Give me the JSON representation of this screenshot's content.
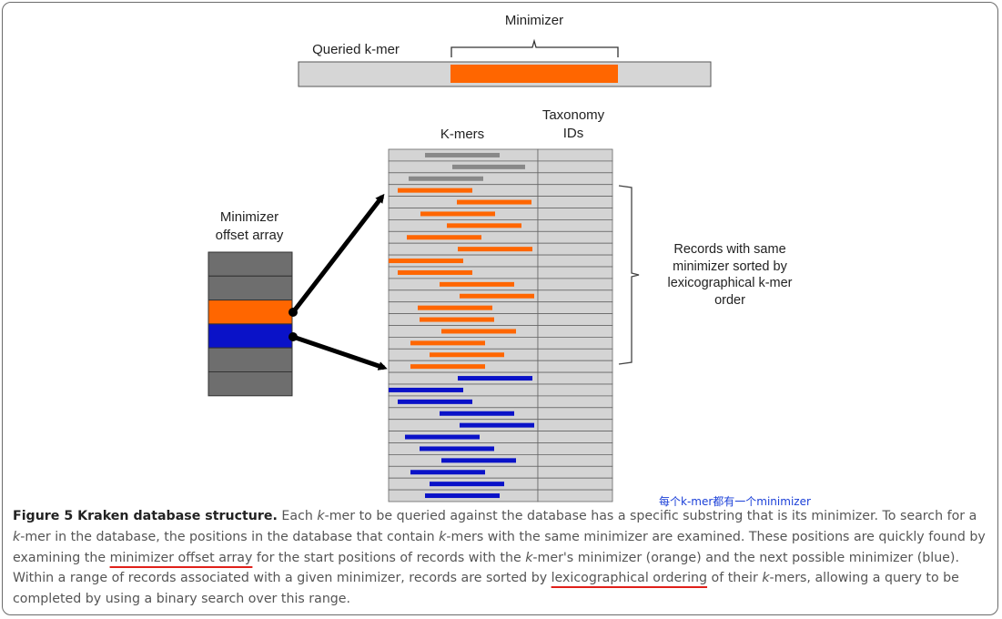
{
  "labels": {
    "minimizer": "Minimizer",
    "queried_kmer": "Queried k-mer",
    "kmers": "K-mers",
    "taxonomy_ids": [
      "Taxonomy",
      "IDs"
    ],
    "offset_array": [
      "Minimizer",
      "offset array"
    ],
    "records_note": [
      "Records with same",
      "minimizer sorted by",
      "lexicographical k-mer",
      "order"
    ]
  },
  "colors": {
    "orange": "#ff6600",
    "blue": "#0a12c8",
    "gray": "#888888",
    "cell": "#d4d4d4",
    "array_gray": "#6e6e6e"
  },
  "offset_array_cells": [
    "gray",
    "gray",
    "orange",
    "blue",
    "gray",
    "gray"
  ],
  "kmer_rows": [
    "gray",
    "gray",
    "gray",
    "orange",
    "orange",
    "orange",
    "orange",
    "orange",
    "orange",
    "orange",
    "orange",
    "orange",
    "orange",
    "orange",
    "orange",
    "orange",
    "orange",
    "orange",
    "orange",
    "blue",
    "blue",
    "blue",
    "blue",
    "blue",
    "blue",
    "blue",
    "blue",
    "blue",
    "blue",
    "blue"
  ],
  "annotation": "每个k-mer都有一个minimizer",
  "caption": {
    "figure": "Figure 5 Kraken database structure.",
    "p1": " Each ",
    "k1": "k",
    "p2": "-mer to be queried against the database has a specific substring that is its minimizer. To search for a ",
    "k2": "k",
    "p3": "-mer in the database, the positions in the database that contain ",
    "k3": "k",
    "p4": "-mers with the same minimizer are examined. These positions are quickly found by examining the ",
    "link1": "minimizer offset array",
    "p5": " for the start positions of records with the ",
    "k4": "k",
    "p6": "-mer's minimizer (orange) and the next possible minimizer (blue). Within a range of records associated with a given minimizer, records are sorted by ",
    "link2": "lexicographical ordering",
    "p7": " of their ",
    "k5": "k",
    "p8": "-mers, allowing a query to be completed by using a binary search over this range."
  }
}
